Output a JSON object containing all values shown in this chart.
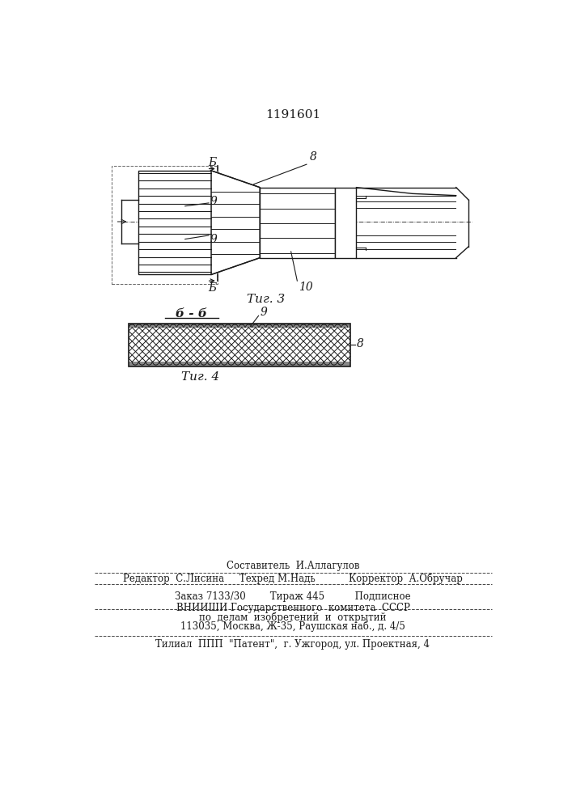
{
  "patent_number": "1191601",
  "fig3_label": "Τиг. 3",
  "fig4_label": "Τиг. 4",
  "section_label": "б - б",
  "label_8": "8",
  "label_9a": "9",
  "label_9b": "9",
  "label_10": "10",
  "label_b_top": "Б",
  "label_b_bottom": "Б",
  "label_8_fig4": "8",
  "label_9_fig4": "9",
  "footer_line1": "Составитель  И.Аллагулов",
  "footer_line2": "Редактор  С.Лисина     Техред М.Надь           Корректор  А.Обручар",
  "footer_line3": "Заказ 7133/30        Тираж 445          Подписное",
  "footer_line4": "ВНИИШИ Государственного  комитета  СССР",
  "footer_line5": "по  делам  изобретений  и  открытий",
  "footer_line6": "113035, Москва, Ж-35, Раушская наб., д. 4/5",
  "footer_line7": "Τилиал  ППП  \"Патент\",  г. Ужгород, ул. Проектная, 4",
  "bg_color": "#ffffff",
  "line_color": "#1a1a1a"
}
